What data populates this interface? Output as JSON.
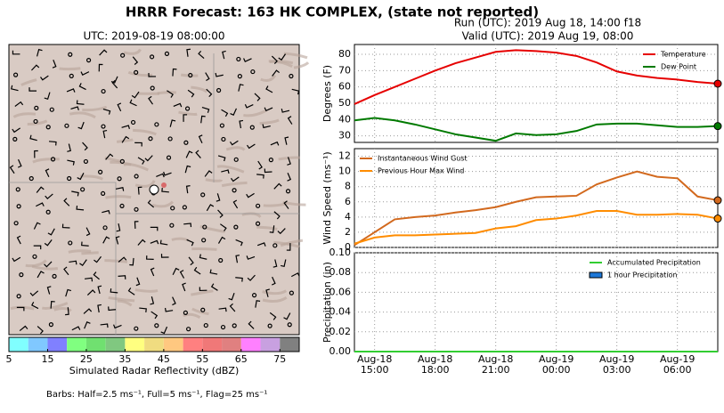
{
  "title": "HRRR Forecast: 163 HK COMPLEX, (state not reported)",
  "run_label": "Run (UTC): 2019 Aug 18, 14:00 f18",
  "valid_label": "Valid (UTC): 2019 Aug 19, 08:00",
  "map": {
    "title": "UTC: 2019-08-19 08:00:00",
    "colorbar": {
      "label": "Simulated Radar Reflectivity (dBZ)",
      "lim": [
        5,
        80
      ],
      "ticks": [
        5,
        15,
        25,
        35,
        45,
        55,
        65,
        75
      ],
      "colors": [
        "#80ffff",
        "#80c8ff",
        "#8080ff",
        "#80ff80",
        "#70e070",
        "#80c880",
        "#ffff80",
        "#f0dc80",
        "#ffc880",
        "#ff8080",
        "#f07878",
        "#e08080",
        "#ff80ff",
        "#c8a0e0",
        "#808080"
      ]
    }
  },
  "footnote": "Barbs: Half=2.5 ms⁻¹, Full=5 ms⁻¹, Flag=25 ms⁻¹",
  "chart_data": [
    {
      "type": "line",
      "ylabel": "Degrees (F)",
      "ylim": [
        26,
        86
      ],
      "yticks": [
        30,
        40,
        50,
        60,
        70,
        80
      ],
      "grid": true,
      "legend": "upper right",
      "x": [
        "Aug-18 14:00",
        "Aug-18 15:00",
        "Aug-18 16:00",
        "Aug-18 17:00",
        "Aug-18 18:00",
        "Aug-18 19:00",
        "Aug-18 20:00",
        "Aug-18 21:00",
        "Aug-18 22:00",
        "Aug-18 23:00",
        "Aug-19 00:00",
        "Aug-19 01:00",
        "Aug-19 02:00",
        "Aug-19 03:00",
        "Aug-19 04:00",
        "Aug-19 05:00",
        "Aug-19 06:00",
        "Aug-19 07:00",
        "Aug-19 08:00"
      ],
      "xticks": [
        "Aug-18 15:00",
        "Aug-18 18:00",
        "Aug-18 21:00",
        "Aug-19 00:00",
        "Aug-19 03:00",
        "Aug-19 06:00"
      ],
      "series": [
        {
          "name": "Temperature",
          "color": "#e60000",
          "values": [
            49.5,
            55,
            60,
            65,
            70,
            74.5,
            78,
            81.5,
            82.5,
            82,
            81,
            79,
            75,
            69.5,
            67,
            65.5,
            64.5,
            63,
            62
          ]
        },
        {
          "name": "Dew Point",
          "color": "#007a00",
          "values": [
            39.5,
            41,
            39.5,
            37,
            34,
            31,
            29,
            27,
            31.5,
            30.5,
            31,
            33,
            37,
            37.5,
            37.5,
            36.5,
            35.5,
            35.5,
            36
          ]
        }
      ]
    },
    {
      "type": "line",
      "ylabel": "Wind Speed (ms⁻¹)",
      "ylim": [
        0,
        13
      ],
      "yticks": [
        0,
        2,
        4,
        6,
        8,
        10,
        12
      ],
      "grid": true,
      "legend": "upper left",
      "x": [
        "Aug-18 14:00",
        "Aug-18 15:00",
        "Aug-18 16:00",
        "Aug-18 17:00",
        "Aug-18 18:00",
        "Aug-18 19:00",
        "Aug-18 20:00",
        "Aug-18 21:00",
        "Aug-18 22:00",
        "Aug-18 23:00",
        "Aug-19 00:00",
        "Aug-19 01:00",
        "Aug-19 02:00",
        "Aug-19 03:00",
        "Aug-19 04:00",
        "Aug-19 05:00",
        "Aug-19 06:00",
        "Aug-19 07:00",
        "Aug-19 08:00"
      ],
      "xticks": [
        "Aug-18 15:00",
        "Aug-18 18:00",
        "Aug-18 21:00",
        "Aug-19 00:00",
        "Aug-19 03:00",
        "Aug-19 06:00"
      ],
      "series": [
        {
          "name": "Instantaneous Wind Gust",
          "color": "#d2691e",
          "values": [
            0.3,
            2,
            3.7,
            4,
            4.2,
            4.6,
            4.9,
            5.3,
            6,
            6.6,
            6.7,
            6.8,
            8.3,
            9.2,
            10,
            9.3,
            9.1,
            6.7,
            6.2
          ]
        },
        {
          "name": "Previous Hour Max Wind",
          "color": "#ff8c00",
          "values": [
            0.5,
            1.3,
            1.6,
            1.6,
            1.7,
            1.8,
            1.9,
            2.5,
            2.8,
            3.6,
            3.8,
            4.2,
            4.8,
            4.8,
            4.3,
            4.3,
            4.4,
            4.3,
            3.8
          ]
        }
      ]
    },
    {
      "type": "line",
      "ylabel": "Precipitation (in)",
      "ylim": [
        0,
        0.1
      ],
      "yticks": [
        {
          "value": 0,
          "label": "0.00"
        },
        {
          "value": 0.02,
          "label": "0.02"
        },
        {
          "value": 0.04,
          "label": "0.04"
        },
        {
          "value": 0.06,
          "label": "0.06"
        },
        {
          "value": 0.08,
          "label": "0.08"
        },
        {
          "value": 0.1,
          "label": "0.10"
        }
      ],
      "grid": true,
      "legend": "upper right",
      "x": [
        "Aug-18 14:00",
        "Aug-18 15:00",
        "Aug-18 16:00",
        "Aug-18 17:00",
        "Aug-18 18:00",
        "Aug-18 19:00",
        "Aug-18 20:00",
        "Aug-18 21:00",
        "Aug-18 22:00",
        "Aug-18 23:00",
        "Aug-19 00:00",
        "Aug-19 01:00",
        "Aug-19 02:00",
        "Aug-19 03:00",
        "Aug-19 04:00",
        "Aug-19 05:00",
        "Aug-19 06:00",
        "Aug-19 07:00",
        "Aug-19 08:00"
      ],
      "xticks": [
        {
          "value": "Aug-18 15:00",
          "label": [
            "Aug-18",
            "15:00"
          ]
        },
        {
          "value": "Aug-18 18:00",
          "label": [
            "Aug-18",
            "18:00"
          ]
        },
        {
          "value": "Aug-18 21:00",
          "label": [
            "Aug-18",
            "21:00"
          ]
        },
        {
          "value": "Aug-19 00:00",
          "label": [
            "Aug-19",
            "00:00"
          ]
        },
        {
          "value": "Aug-19 03:00",
          "label": [
            "Aug-19",
            "03:00"
          ]
        },
        {
          "value": "Aug-19 06:00",
          "label": [
            "Aug-19",
            "06:00"
          ]
        }
      ],
      "series": [
        {
          "name": "Accumulated Precipitation",
          "color": "#32cd32",
          "values": [
            0,
            0,
            0,
            0,
            0,
            0,
            0,
            0,
            0,
            0,
            0,
            0,
            0,
            0,
            0,
            0,
            0,
            0,
            0
          ]
        },
        {
          "name": "1 hour Precipitation",
          "color": "#1e78d8",
          "type": "bar",
          "values": [
            0,
            0,
            0,
            0,
            0,
            0,
            0,
            0,
            0,
            0,
            0,
            0,
            0,
            0,
            0,
            0,
            0,
            0,
            0
          ]
        }
      ]
    }
  ]
}
